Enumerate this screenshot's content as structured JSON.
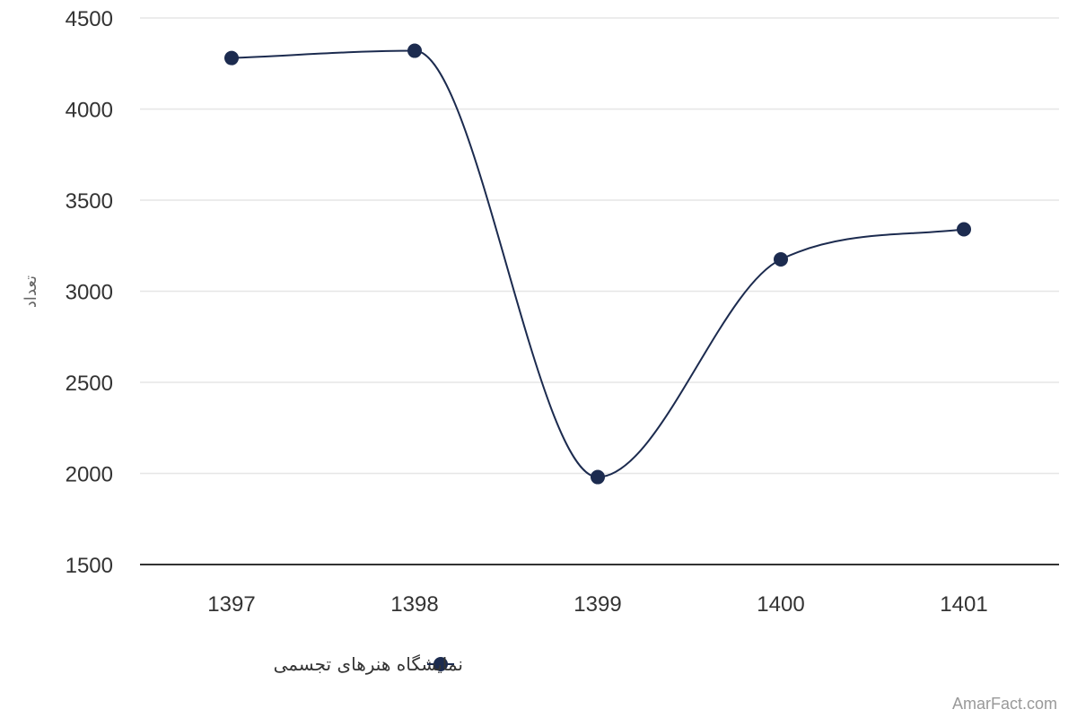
{
  "colors": {
    "series": "#1c2b4f",
    "grid": "#e6e6e6",
    "baseline": "#333333",
    "tick_text": "#333333",
    "credit": "#999999"
  },
  "chart_data": {
    "type": "line",
    "categories": [
      "1397",
      "1398",
      "1399",
      "1400",
      "1401"
    ],
    "series": [
      {
        "name": "نمایشگاه هنرهای تجسمی",
        "values": [
          4280,
          4320,
          1980,
          3175,
          3340
        ]
      }
    ],
    "ylabel": "تعداد",
    "xlabel": "",
    "ylim": [
      1500,
      4500
    ],
    "yticks": [
      1500,
      2000,
      2500,
      3000,
      3500,
      4000,
      4500
    ],
    "grid": true,
    "smooth": true,
    "markers": "circle",
    "legend": "bottom-center"
  },
  "credit": "AmarFact.com"
}
